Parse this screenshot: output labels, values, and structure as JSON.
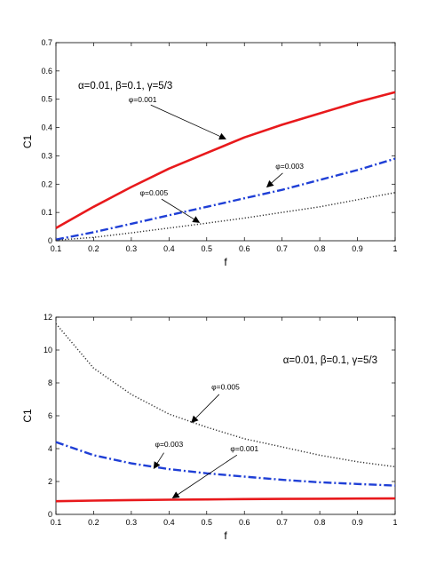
{
  "chart_data": [
    {
      "type": "line",
      "title": "",
      "xlabel": "f",
      "ylabel": "C1",
      "xlim": [
        0.1,
        1
      ],
      "ylim": [
        0,
        0.7
      ],
      "xticks": [
        "0.1",
        "0.2",
        "0.3",
        "0.4",
        "0.5",
        "0.6",
        "0.7",
        "0.8",
        "0.9",
        "1"
      ],
      "yticks": [
        "0",
        "0.1",
        "0.2",
        "0.3",
        "0.4",
        "0.5",
        "0.6",
        "0.7"
      ],
      "grid": false,
      "parameters_text": "α=0.01, β=0.1, γ=5/3",
      "x": [
        0.1,
        0.2,
        0.3,
        0.4,
        0.5,
        0.6,
        0.7,
        0.8,
        0.9,
        1.0
      ],
      "series": [
        {
          "name": "φ=0.001",
          "color": "#e8191c",
          "style": "solid",
          "values": [
            0.045,
            0.12,
            0.19,
            0.255,
            0.31,
            0.365,
            0.41,
            0.45,
            0.49,
            0.525
          ],
          "label_at": [
            0.33,
            0.49
          ],
          "arrow_to": [
            0.55,
            0.36
          ]
        },
        {
          "name": "φ=0.003",
          "color": "#1f3fd6",
          "style": "dashdot",
          "values": [
            0.004,
            0.03,
            0.06,
            0.09,
            0.12,
            0.15,
            0.18,
            0.215,
            0.25,
            0.29
          ],
          "label_at": [
            0.72,
            0.255
          ],
          "arrow_to": [
            0.66,
            0.19
          ]
        },
        {
          "name": "φ=0.005",
          "color": "#333333",
          "style": "dotted",
          "values": [
            0.002,
            0.012,
            0.028,
            0.045,
            0.062,
            0.08,
            0.1,
            0.12,
            0.145,
            0.17
          ],
          "label_at": [
            0.36,
            0.16
          ],
          "arrow_to": [
            0.48,
            0.065
          ]
        }
      ]
    },
    {
      "type": "line",
      "title": "",
      "xlabel": "f",
      "ylabel": "C1",
      "xlim": [
        0.1,
        1
      ],
      "ylim": [
        0,
        12
      ],
      "xticks": [
        "0.1",
        "0.2",
        "0.3",
        "0.4",
        "0.5",
        "0.6",
        "0.7",
        "0.8",
        "0.9",
        "1"
      ],
      "yticks": [
        "0",
        "2",
        "4",
        "6",
        "8",
        "10",
        "12"
      ],
      "grid": false,
      "parameters_text": "α=0.01, β=0.1, γ=5/3",
      "x": [
        0.1,
        0.2,
        0.3,
        0.4,
        0.5,
        0.6,
        0.7,
        0.8,
        0.9,
        1.0
      ],
      "series": [
        {
          "name": "φ=0.005",
          "color": "#333333",
          "style": "dotted",
          "values": [
            11.6,
            8.9,
            7.3,
            6.1,
            5.3,
            4.6,
            4.1,
            3.6,
            3.2,
            2.9
          ],
          "label_at": [
            0.55,
            7.6
          ],
          "arrow_to": [
            0.46,
            5.6
          ]
        },
        {
          "name": "φ=0.003",
          "color": "#1f3fd6",
          "style": "dashdot",
          "values": [
            4.4,
            3.6,
            3.1,
            2.75,
            2.5,
            2.3,
            2.1,
            1.95,
            1.85,
            1.75
          ],
          "label_at": [
            0.4,
            4.1
          ],
          "arrow_to": [
            0.36,
            2.8
          ]
        },
        {
          "name": "φ=0.001",
          "color": "#e8191c",
          "style": "solid",
          "values": [
            0.8,
            0.84,
            0.87,
            0.89,
            0.91,
            0.93,
            0.94,
            0.95,
            0.96,
            0.97
          ],
          "label_at": [
            0.6,
            3.85
          ],
          "arrow_to": [
            0.41,
            1.0
          ]
        }
      ]
    }
  ]
}
